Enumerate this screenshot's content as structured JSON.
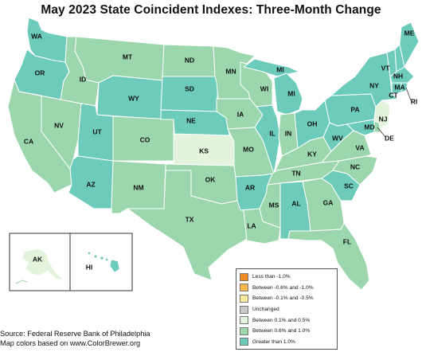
{
  "title": "May 2023 State Coincident Indexes: Three-Month Change",
  "legend": {
    "items": [
      {
        "label": "Less than -1.0%",
        "color": "#f08a24"
      },
      {
        "label": "Between -0.6% and -1.0%",
        "color": "#f6b94f"
      },
      {
        "label": "Between -0.1% and -0.5%",
        "color": "#fbe9a4"
      },
      {
        "label": "Unchanged",
        "color": "#c9c9c9"
      },
      {
        "label": "Between 0.1% and 0.5%",
        "color": "#e4f3dc"
      },
      {
        "label": "Between 0.6% and 1.0%",
        "color": "#9bd6ac"
      },
      {
        "label": "Greater than 1.0%",
        "color": "#6ccbbb"
      }
    ]
  },
  "states": {
    "WA": "high",
    "OR": "high",
    "CA": "mid",
    "NV": "mid",
    "ID": "mid",
    "MT": "mid",
    "WY": "high",
    "UT": "high",
    "AZ": "high",
    "CO": "mid",
    "NM": "mid",
    "ND": "mid",
    "SD": "high",
    "NE": "high",
    "KS": "low",
    "OK": "mid",
    "TX": "mid",
    "MN": "mid",
    "IA": "mid",
    "MO": "mid",
    "AR": "high",
    "LA": "mid",
    "WI": "mid",
    "IL": "high",
    "MI": "high",
    "IN": "mid",
    "OH": "high",
    "KY": "mid",
    "TN": "mid",
    "MS": "mid",
    "AL": "high",
    "GA": "mid",
    "FL": "mid",
    "SC": "high",
    "NC": "mid",
    "VA": "mid",
    "WV": "high",
    "PA": "high",
    "NY": "high",
    "VT": "high",
    "NH": "high",
    "ME": "high",
    "MA": "high",
    "CT": "high",
    "RI": "high",
    "NJ": "low",
    "DE": "mid",
    "MD": "high",
    "AK": "low",
    "HI": "high"
  },
  "state_labels": {
    "WA": "WA",
    "OR": "OR",
    "CA": "CA",
    "NV": "NV",
    "ID": "ID",
    "MT": "MT",
    "WY": "WY",
    "UT": "UT",
    "AZ": "AZ",
    "CO": "CO",
    "NM": "NM",
    "ND": "ND",
    "SD": "SD",
    "NE": "NE",
    "KS": "KS",
    "OK": "OK",
    "TX": "TX",
    "MN": "MN",
    "IA": "IA",
    "MO": "MO",
    "AR": "AR",
    "LA": "LA",
    "WI": "WI",
    "IL": "IL",
    "MI_UP": "MI",
    "MI": "MI",
    "IN": "IN",
    "OH": "OH",
    "KY": "KY",
    "TN": "TN",
    "MS": "MS",
    "AL": "AL",
    "GA": "GA",
    "FL": "FL",
    "SC": "SC",
    "NC": "NC",
    "VA": "VA",
    "WV": "WV",
    "PA": "PA",
    "NY": "NY",
    "VT": "VT",
    "NH": "NH",
    "ME": "ME",
    "MA": "MA",
    "CT": "CT",
    "RI": "RI",
    "NJ": "NJ",
    "DE": "DE",
    "MD": "MD",
    "AK": "AK",
    "HI": "HI"
  },
  "classes": {
    "high": "#6ccbbb",
    "mid": "#9bd6ac",
    "low": "#e4f3dc"
  },
  "source": {
    "line1": "Source: Federal Reserve Bank of Philadelphia",
    "line2": "Map colors based on www.ColorBrewer.org"
  }
}
